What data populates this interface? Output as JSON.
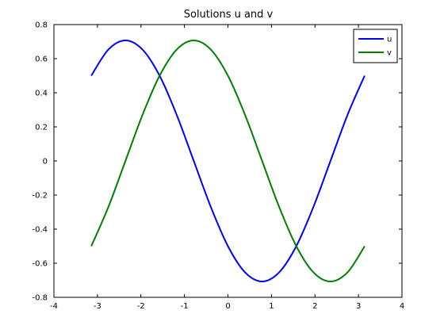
{
  "chart_data": {
    "type": "line",
    "title": "Solutions u and v",
    "xlabel": "",
    "ylabel": "",
    "xlim": [
      -4,
      4
    ],
    "ylim": [
      -0.8,
      0.8
    ],
    "xticks": [
      "-4",
      "-3",
      "-2",
      "-1",
      "0",
      "1",
      "2",
      "3",
      "4"
    ],
    "yticks": [
      "-0.8",
      "-0.6",
      "-0.4",
      "-0.2",
      "0",
      "0.2",
      "0.4",
      "0.6",
      "0.8"
    ],
    "grid": false,
    "legend_position": "top-right",
    "series": [
      {
        "name": "u",
        "color": "#0000ff",
        "x": [
          -3.1416,
          -2.7489,
          -2.3562,
          -1.9635,
          -1.5708,
          -1.1781,
          -0.7854,
          -0.3927,
          0.0,
          0.3927,
          0.7854,
          1.1781,
          1.5708,
          1.9635,
          2.3562,
          2.7489,
          3.1416
        ],
        "y": [
          0.5,
          0.6533,
          0.7071,
          0.6533,
          0.5,
          0.2706,
          0.0,
          -0.2706,
          -0.5,
          -0.6533,
          -0.7071,
          -0.6533,
          -0.5,
          -0.2706,
          0.0,
          0.2706,
          0.5
        ]
      },
      {
        "name": "v",
        "color": "#008000",
        "x": [
          -3.1416,
          -2.7489,
          -2.3562,
          -1.9635,
          -1.5708,
          -1.1781,
          -0.7854,
          -0.3927,
          0.0,
          0.3927,
          0.7854,
          1.1781,
          1.5708,
          1.9635,
          2.3562,
          2.7489,
          3.1416
        ],
        "y": [
          -0.5,
          -0.2706,
          0.0,
          0.2706,
          0.5,
          0.6533,
          0.7071,
          0.6533,
          0.5,
          0.2706,
          0.0,
          -0.2706,
          -0.5,
          -0.6533,
          -0.7071,
          -0.6533,
          -0.5
        ]
      }
    ]
  }
}
